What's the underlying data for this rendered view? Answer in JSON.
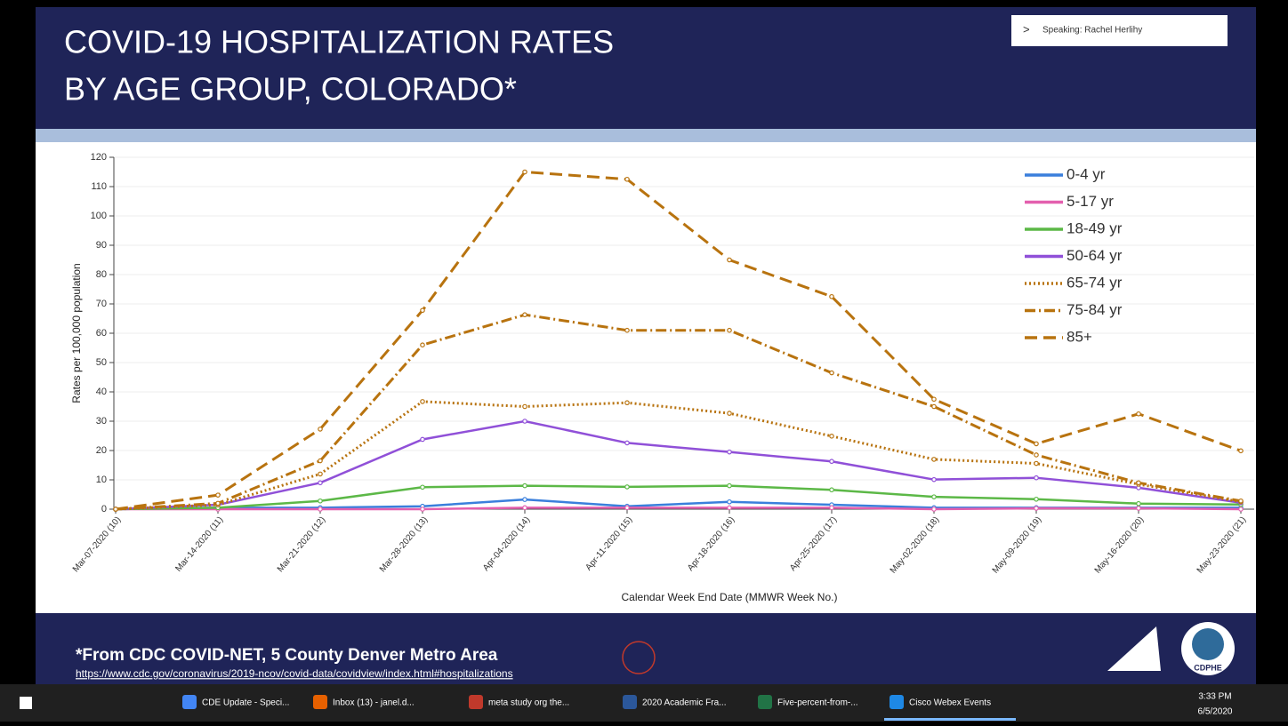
{
  "slide": {
    "title_lines": [
      "COVID-19 HOSPITALIZATION RATES",
      "BY AGE GROUP, COLORADO*"
    ],
    "footnote": "*From CDC COVID-NET, 5 County Denver Metro Area",
    "url": "https://www.cdc.gov/coronavirus/2019-ncov/covid-data/covidview/index.html#hospitalizations",
    "logo_text": "CDPHE"
  },
  "speaker": "Speaking: Rachel Herlihy",
  "taskbar": {
    "items": [
      "CDE Update - Speci...",
      "Inbox (13) - janel.d...",
      "meta study org the...",
      "2020 Academic Fra...",
      "Five-percent-from-...",
      "Cisco Webex Events"
    ],
    "time": "3:33 PM",
    "date": "6/5/2020"
  },
  "chart_data": {
    "type": "line",
    "x_label": "Calendar Week End Date (MMWR Week No.)",
    "y_label": "Rates per 100,000 population",
    "categories": [
      "Mar-07-2020 (10)",
      "Mar-14-2020 (11)",
      "Mar-21-2020 (12)",
      "Mar-28-2020 (13)",
      "Apr-04-2020 (14)",
      "Apr-11-2020 (15)",
      "Apr-18-2020 (16)",
      "Apr-25-2020 (17)",
      "May-02-2020 (18)",
      "May-09-2020 (19)",
      "May-16-2020 (20)",
      "May-23-2020 (21)"
    ],
    "ylim": [
      0,
      120
    ],
    "yticks": [
      0,
      10,
      20,
      30,
      40,
      50,
      60,
      70,
      80,
      90,
      100,
      110,
      120
    ],
    "grid": true,
    "legend": "upper right",
    "series": [
      {
        "name": "0-4 yr",
        "color": "#3a7fdc",
        "dash": "solid",
        "values": [
          0,
          0.5,
          0.5,
          1,
          3.3,
          1,
          2.5,
          1.5,
          0.5,
          0.5,
          0.5,
          0.5
        ]
      },
      {
        "name": "5-17 yr",
        "color": "#e35fae",
        "dash": "solid",
        "values": [
          0,
          0,
          0,
          0,
          0.5,
          0.5,
          0.5,
          0.5,
          0,
          0.3,
          0.3,
          0
        ]
      },
      {
        "name": "18-49 yr",
        "color": "#5cb847",
        "dash": "solid",
        "values": [
          0,
          0.5,
          2.8,
          7.5,
          8,
          7.6,
          8,
          6.6,
          4.2,
          3.4,
          1.9,
          1.6
        ]
      },
      {
        "name": "50-64 yr",
        "color": "#9050d8",
        "dash": "solid",
        "values": [
          0,
          1.5,
          9,
          23.8,
          30,
          22.6,
          19.5,
          16.3,
          10.1,
          10.7,
          7.3,
          2.2
        ]
      },
      {
        "name": "65-74 yr",
        "color": "#b8730f",
        "dash": "dotted",
        "values": [
          0,
          1.5,
          12,
          36.7,
          35,
          36.3,
          32.7,
          24.9,
          17,
          15.6,
          8.5,
          2.5
        ]
      },
      {
        "name": "75-84 yr",
        "color": "#b8730f",
        "dash": "dashdot",
        "values": [
          0,
          2,
          16.5,
          56,
          66.3,
          61,
          61,
          46.5,
          35,
          18.5,
          9,
          2.8
        ]
      },
      {
        "name": "85+",
        "color": "#b8730f",
        "dash": "dashed",
        "values": [
          0,
          4.8,
          27.3,
          67.8,
          115,
          112.5,
          85,
          72.5,
          37.5,
          22.3,
          32.5,
          19.9
        ]
      }
    ]
  }
}
